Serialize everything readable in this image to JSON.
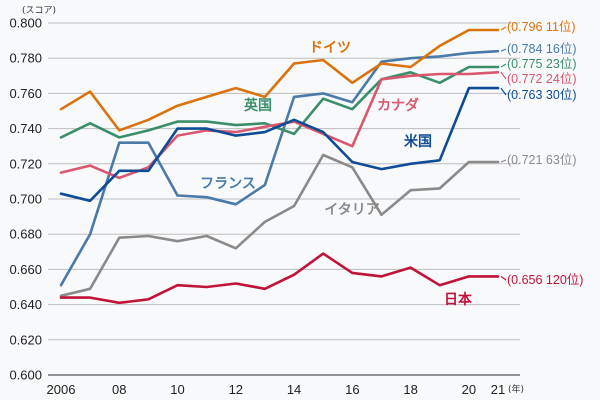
{
  "chart_data": {
    "type": "line",
    "title": "",
    "ylabel": "(スコア)",
    "xlabel": "(年)",
    "ylim": [
      0.6,
      0.8
    ],
    "yticks": [
      "0.800",
      "0.780",
      "0.760",
      "0.740",
      "0.720",
      "0.700",
      "0.680",
      "0.660",
      "0.640",
      "0.620",
      "0.600"
    ],
    "x": [
      2006,
      2007,
      2008,
      2009,
      2010,
      2011,
      2012,
      2013,
      2014,
      2015,
      2016,
      2017,
      2018,
      2019,
      2020,
      2021
    ],
    "xticks": [
      {
        "year": 2006,
        "label": "2006"
      },
      {
        "year": 2008,
        "label": "08"
      },
      {
        "year": 2010,
        "label": "10"
      },
      {
        "year": 2012,
        "label": "12"
      },
      {
        "year": 2014,
        "label": "14"
      },
      {
        "year": 2016,
        "label": "16"
      },
      {
        "year": 2018,
        "label": "18"
      },
      {
        "year": 2020,
        "label": "20"
      },
      {
        "year": 2021,
        "label": "21"
      }
    ],
    "grid": true,
    "series": [
      {
        "name": "ドイツ",
        "color": "#d9730d",
        "values": [
          0.751,
          0.761,
          0.739,
          0.745,
          0.753,
          0.758,
          0.763,
          0.758,
          0.777,
          0.779,
          0.766,
          0.777,
          0.775,
          0.787,
          0.796,
          0.796
        ],
        "end_label": "(0.796 11位)"
      },
      {
        "name": "フランス",
        "color": "#4a7aa8",
        "values": [
          0.651,
          0.68,
          0.732,
          0.732,
          0.702,
          0.701,
          0.697,
          0.708,
          0.758,
          0.76,
          0.755,
          0.778,
          0.78,
          0.781,
          0.783,
          0.784
        ],
        "end_label": "(0.784 16位)"
      },
      {
        "name": "英国",
        "color": "#3a8f6a",
        "values": [
          0.735,
          0.743,
          0.735,
          0.739,
          0.744,
          0.744,
          0.742,
          0.743,
          0.737,
          0.757,
          0.751,
          0.768,
          0.772,
          0.766,
          0.775,
          0.775
        ],
        "end_label": "(0.775 23位)"
      },
      {
        "name": "カナダ",
        "color": "#d9576f",
        "values": [
          0.715,
          0.719,
          0.712,
          0.718,
          0.736,
          0.739,
          0.738,
          0.741,
          0.744,
          0.737,
          0.73,
          0.768,
          0.77,
          0.771,
          0.771,
          0.772
        ],
        "end_label": "(0.772 24位)"
      },
      {
        "name": "米国",
        "color": "#0f4c96",
        "values": [
          0.703,
          0.699,
          0.716,
          0.716,
          0.74,
          0.74,
          0.736,
          0.738,
          0.745,
          0.738,
          0.721,
          0.717,
          0.72,
          0.722,
          0.763,
          0.763
        ],
        "end_label": "(0.763 30位)"
      },
      {
        "name": "イタリア",
        "color": "#8a8a8a",
        "values": [
          0.645,
          0.649,
          0.678,
          0.679,
          0.676,
          0.679,
          0.672,
          0.687,
          0.696,
          0.725,
          0.718,
          0.691,
          0.705,
          0.706,
          0.721,
          0.721
        ],
        "end_label": "(0.721 63位)"
      },
      {
        "name": "日本",
        "color": "#c0133a",
        "values": [
          0.644,
          0.644,
          0.641,
          0.643,
          0.651,
          0.65,
          0.652,
          0.649,
          0.657,
          0.669,
          0.658,
          0.656,
          0.661,
          0.651,
          0.656,
          0.656
        ],
        "end_label": "(0.656 120位)"
      }
    ]
  }
}
